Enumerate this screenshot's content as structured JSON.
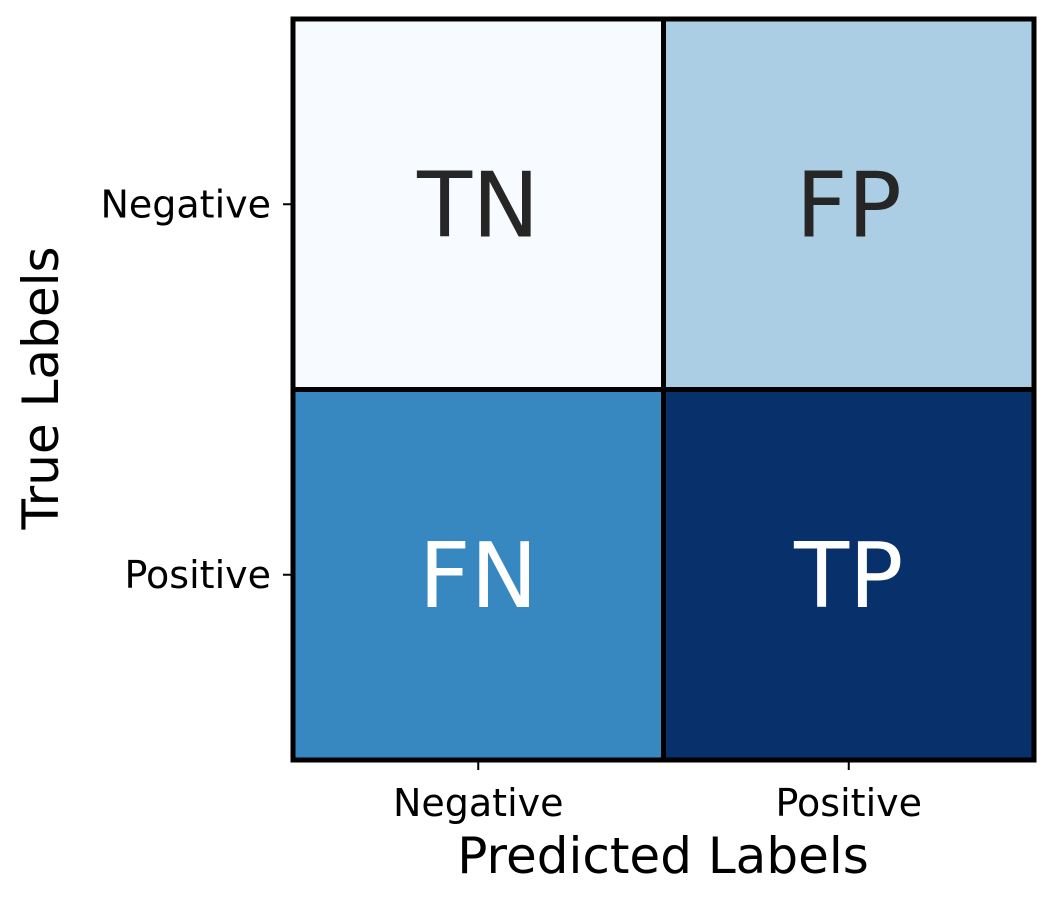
{
  "chart_data": {
    "type": "heatmap",
    "title": "",
    "xlabel": "Predicted Labels",
    "ylabel": "True Labels",
    "x_categories": [
      "Negative",
      "Positive"
    ],
    "y_categories": [
      "Negative",
      "Positive"
    ],
    "cells": [
      [
        {
          "label": "TN",
          "fill": "#f7fbff",
          "text_color": "#262626"
        },
        {
          "label": "FP",
          "fill": "#abcee4",
          "text_color": "#262626"
        }
      ],
      [
        {
          "label": "FN",
          "fill": "#3787c0",
          "text_color": "#ffffff"
        },
        {
          "label": "TP",
          "fill": "#08306b",
          "text_color": "#ffffff"
        }
      ]
    ],
    "colormap": "Blues",
    "colorbar": false,
    "cell_border_color": "#000000"
  }
}
